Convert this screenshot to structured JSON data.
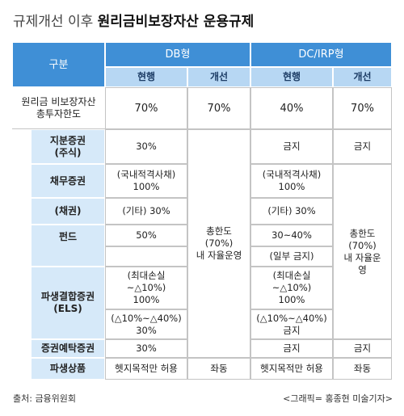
{
  "title": {
    "prefix": "규제개선 이후",
    "main": "원리금비보장자산 운용규제"
  },
  "table": {
    "header": {
      "category": "구분",
      "groups": [
        "DB형",
        "DC/IRP형"
      ],
      "subheaders": [
        "현행",
        "개선",
        "현행",
        "개선"
      ]
    },
    "total_limit": {
      "label": "원리금 비보장자산\n총투자한도",
      "cells": [
        "70%",
        "70%",
        "40%",
        "70%"
      ]
    },
    "db_improved_merged": "총한도\n(70%)\n내 자율운영",
    "dc_improved_merged": "총한도\n(70%)\n내 자율운\n영",
    "rows": [
      {
        "label": "지분증권\n(주식)",
        "db_current": [
          "30%"
        ],
        "dc_current": [
          "금지"
        ],
        "dc_improved": "금지"
      },
      {
        "label": "채무증권",
        "db_current": [
          "(국내적격사채)\n100%"
        ],
        "dc_current": [
          "(국내적격사채)\n100%"
        ]
      },
      {
        "label": "(채권)",
        "db_current": [
          "(기타) 30%"
        ],
        "dc_current": [
          "(기타) 30%"
        ]
      },
      {
        "label": "펀드",
        "db_current": [
          "50%"
        ],
        "dc_current": [
          "30~40%",
          "(일부 금지)"
        ]
      },
      {
        "label": "파생결합증권\n(ELS)",
        "db_current": [
          "(최대손실\n~△10%)\n100%",
          "(△10%~△40%)\n30%"
        ],
        "dc_current": [
          "(최대손실\n~△10%)\n100%",
          "(△10%~△40%)\n금지"
        ]
      },
      {
        "label": "증권예탁증권",
        "db_current": [
          "30%"
        ],
        "dc_current": [
          "금지"
        ],
        "dc_improved": "금지"
      },
      {
        "label": "파생상품",
        "db_current": [
          "헷지목적만 허용"
        ],
        "db_improved": "좌동",
        "dc_current": [
          "헷지목적만 허용"
        ],
        "dc_improved": "좌동"
      }
    ]
  },
  "footer": {
    "source": "출처: 금융위원회",
    "credit": "<그래픽= 홍종현 미술기자>"
  }
}
